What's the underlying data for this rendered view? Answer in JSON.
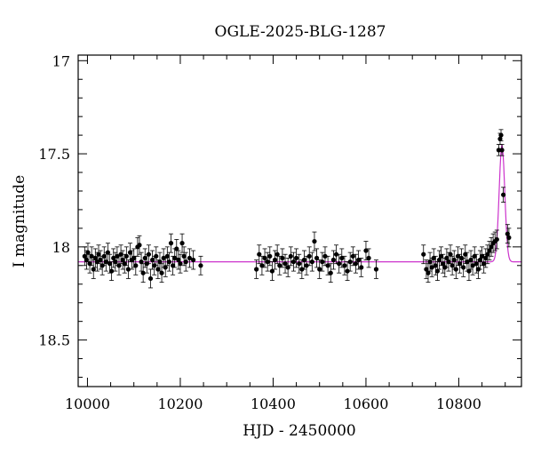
{
  "chart_data": {
    "type": "scatter",
    "title": "OGLE-2025-BLG-1287",
    "xlabel": "HJD - 2450000",
    "ylabel": "I magnitude",
    "xlim": [
      9980,
      10935
    ],
    "ylim": [
      18.75,
      16.97
    ],
    "y_inverted": true,
    "x_ticks": [
      10000,
      10200,
      10400,
      10600,
      10800
    ],
    "y_ticks": [
      17,
      17.5,
      18,
      18.5
    ],
    "y_tick_labels": [
      "17",
      "17.5",
      "18",
      "18.5"
    ],
    "x_minor_step": 50,
    "y_minor_step": 0.1,
    "grid": false,
    "colors": {
      "points": "#000000",
      "model": "#cc33cc",
      "frame": "#000000"
    },
    "model": {
      "name": "",
      "baseline_mag": 18.08,
      "peak_mag": 17.45,
      "t0": 10893,
      "width_days": 6
    },
    "series": [
      {
        "name": "",
        "points": [
          [
            9994,
            18.05,
            0.05
          ],
          [
            9998,
            18.07,
            0.05
          ],
          [
            10001,
            18.03,
            0.05
          ],
          [
            10005,
            18.09,
            0.05
          ],
          [
            10009,
            18.05,
            0.05
          ],
          [
            10013,
            18.12,
            0.05
          ],
          [
            10017,
            18.06,
            0.05
          ],
          [
            10021,
            18.08,
            0.05
          ],
          [
            10024,
            18.04,
            0.05
          ],
          [
            10028,
            18.07,
            0.05
          ],
          [
            10032,
            18.1,
            0.05
          ],
          [
            10036,
            18.05,
            0.05
          ],
          [
            10040,
            18.08,
            0.05
          ],
          [
            10044,
            18.03,
            0.05
          ],
          [
            10048,
            18.09,
            0.05
          ],
          [
            10052,
            18.13,
            0.05
          ],
          [
            10056,
            18.06,
            0.05
          ],
          [
            10060,
            18.08,
            0.05
          ],
          [
            10064,
            18.05,
            0.05
          ],
          [
            10068,
            18.1,
            0.05
          ],
          [
            10072,
            18.04,
            0.05
          ],
          [
            10076,
            18.07,
            0.05
          ],
          [
            10080,
            18.09,
            0.05
          ],
          [
            10084,
            18.05,
            0.05
          ],
          [
            10088,
            18.12,
            0.05
          ],
          [
            10092,
            18.03,
            0.05
          ],
          [
            10096,
            18.07,
            0.05
          ],
          [
            10100,
            18.06,
            0.05
          ],
          [
            10104,
            18.1,
            0.05
          ],
          [
            10108,
            18.0,
            0.05
          ],
          [
            10112,
            17.99,
            0.05
          ],
          [
            10116,
            18.08,
            0.05
          ],
          [
            10120,
            18.14,
            0.05
          ],
          [
            10124,
            18.06,
            0.05
          ],
          [
            10128,
            18.09,
            0.05
          ],
          [
            10132,
            18.04,
            0.05
          ],
          [
            10136,
            18.17,
            0.05
          ],
          [
            10140,
            18.07,
            0.05
          ],
          [
            10144,
            18.1,
            0.05
          ],
          [
            10148,
            18.05,
            0.05
          ],
          [
            10152,
            18.12,
            0.05
          ],
          [
            10156,
            18.08,
            0.05
          ],
          [
            10160,
            18.14,
            0.05
          ],
          [
            10164,
            18.06,
            0.05
          ],
          [
            10168,
            18.11,
            0.05
          ],
          [
            10172,
            18.05,
            0.05
          ],
          [
            10176,
            18.08,
            0.05
          ],
          [
            10180,
            17.98,
            0.05
          ],
          [
            10184,
            18.1,
            0.05
          ],
          [
            10188,
            18.06,
            0.05
          ],
          [
            10192,
            18.01,
            0.05
          ],
          [
            10196,
            18.07,
            0.05
          ],
          [
            10200,
            18.09,
            0.05
          ],
          [
            10204,
            17.98,
            0.05
          ],
          [
            10208,
            18.05,
            0.05
          ],
          [
            10212,
            18.08,
            0.05
          ],
          [
            10220,
            18.06,
            0.05
          ],
          [
            10228,
            18.07,
            0.05
          ],
          [
            10244,
            18.1,
            0.05
          ],
          [
            10364,
            18.12,
            0.05
          ],
          [
            10370,
            18.04,
            0.05
          ],
          [
            10376,
            18.1,
            0.05
          ],
          [
            10382,
            18.06,
            0.05
          ],
          [
            10388,
            18.08,
            0.05
          ],
          [
            10393,
            18.05,
            0.05
          ],
          [
            10398,
            18.13,
            0.05
          ],
          [
            10404,
            18.07,
            0.05
          ],
          [
            10409,
            18.04,
            0.05
          ],
          [
            10414,
            18.1,
            0.05
          ],
          [
            10420,
            18.06,
            0.05
          ],
          [
            10426,
            18.09,
            0.05
          ],
          [
            10432,
            18.11,
            0.05
          ],
          [
            10438,
            18.05,
            0.05
          ],
          [
            10444,
            18.08,
            0.05
          ],
          [
            10450,
            18.06,
            0.05
          ],
          [
            10456,
            18.09,
            0.05
          ],
          [
            10462,
            18.12,
            0.05
          ],
          [
            10467,
            18.07,
            0.05
          ],
          [
            10472,
            18.1,
            0.05
          ],
          [
            10478,
            18.05,
            0.05
          ],
          [
            10484,
            18.08,
            0.05
          ],
          [
            10489,
            17.97,
            0.05
          ],
          [
            10494,
            18.06,
            0.05
          ],
          [
            10500,
            18.12,
            0.05
          ],
          [
            10506,
            18.08,
            0.05
          ],
          [
            10512,
            18.05,
            0.05
          ],
          [
            10518,
            18.1,
            0.05
          ],
          [
            10524,
            18.14,
            0.05
          ],
          [
            10530,
            18.07,
            0.05
          ],
          [
            10536,
            18.04,
            0.05
          ],
          [
            10542,
            18.09,
            0.05
          ],
          [
            10548,
            18.06,
            0.05
          ],
          [
            10554,
            18.1,
            0.05
          ],
          [
            10560,
            18.13,
            0.05
          ],
          [
            10566,
            18.08,
            0.05
          ],
          [
            10572,
            18.05,
            0.05
          ],
          [
            10578,
            18.09,
            0.05
          ],
          [
            10584,
            18.07,
            0.05
          ],
          [
            10590,
            18.11,
            0.05
          ],
          [
            10600,
            18.02,
            0.05
          ],
          [
            10606,
            18.06,
            0.05
          ],
          [
            10622,
            18.12,
            0.05
          ],
          [
            10724,
            18.04,
            0.05
          ],
          [
            10730,
            18.12,
            0.05
          ],
          [
            10734,
            18.14,
            0.05
          ],
          [
            10738,
            18.08,
            0.05
          ],
          [
            10742,
            18.11,
            0.05
          ],
          [
            10746,
            18.06,
            0.05
          ],
          [
            10750,
            18.1,
            0.05
          ],
          [
            10754,
            18.13,
            0.05
          ],
          [
            10758,
            18.07,
            0.05
          ],
          [
            10762,
            18.05,
            0.05
          ],
          [
            10766,
            18.09,
            0.05
          ],
          [
            10770,
            18.11,
            0.05
          ],
          [
            10774,
            18.06,
            0.05
          ],
          [
            10778,
            18.08,
            0.05
          ],
          [
            10782,
            18.04,
            0.05
          ],
          [
            10786,
            18.1,
            0.05
          ],
          [
            10790,
            18.07,
            0.05
          ],
          [
            10794,
            18.12,
            0.05
          ],
          [
            10798,
            18.05,
            0.05
          ],
          [
            10802,
            18.09,
            0.05
          ],
          [
            10806,
            18.06,
            0.05
          ],
          [
            10810,
            18.11,
            0.05
          ],
          [
            10814,
            18.04,
            0.05
          ],
          [
            10818,
            18.08,
            0.05
          ],
          [
            10822,
            18.13,
            0.05
          ],
          [
            10826,
            18.07,
            0.05
          ],
          [
            10830,
            18.1,
            0.05
          ],
          [
            10834,
            18.05,
            0.05
          ],
          [
            10838,
            18.09,
            0.05
          ],
          [
            10842,
            18.12,
            0.05
          ],
          [
            10846,
            18.07,
            0.05
          ],
          [
            10850,
            18.05,
            0.05
          ],
          [
            10854,
            18.09,
            0.05
          ],
          [
            10858,
            18.06,
            0.05
          ],
          [
            10862,
            18.04,
            0.05
          ],
          [
            10866,
            18.02,
            0.05
          ],
          [
            10870,
            18.0,
            0.05
          ],
          [
            10874,
            17.98,
            0.05
          ],
          [
            10878,
            17.97,
            0.05
          ],
          [
            10882,
            17.96,
            0.05
          ],
          [
            10886,
            17.48,
            0.03
          ],
          [
            10889,
            17.42,
            0.03
          ],
          [
            10891,
            17.4,
            0.03
          ],
          [
            10893,
            17.48,
            0.03
          ],
          [
            10896,
            17.72,
            0.04
          ],
          [
            10905,
            17.93,
            0.05
          ],
          [
            10908,
            17.95,
            0.05
          ]
        ]
      }
    ]
  }
}
